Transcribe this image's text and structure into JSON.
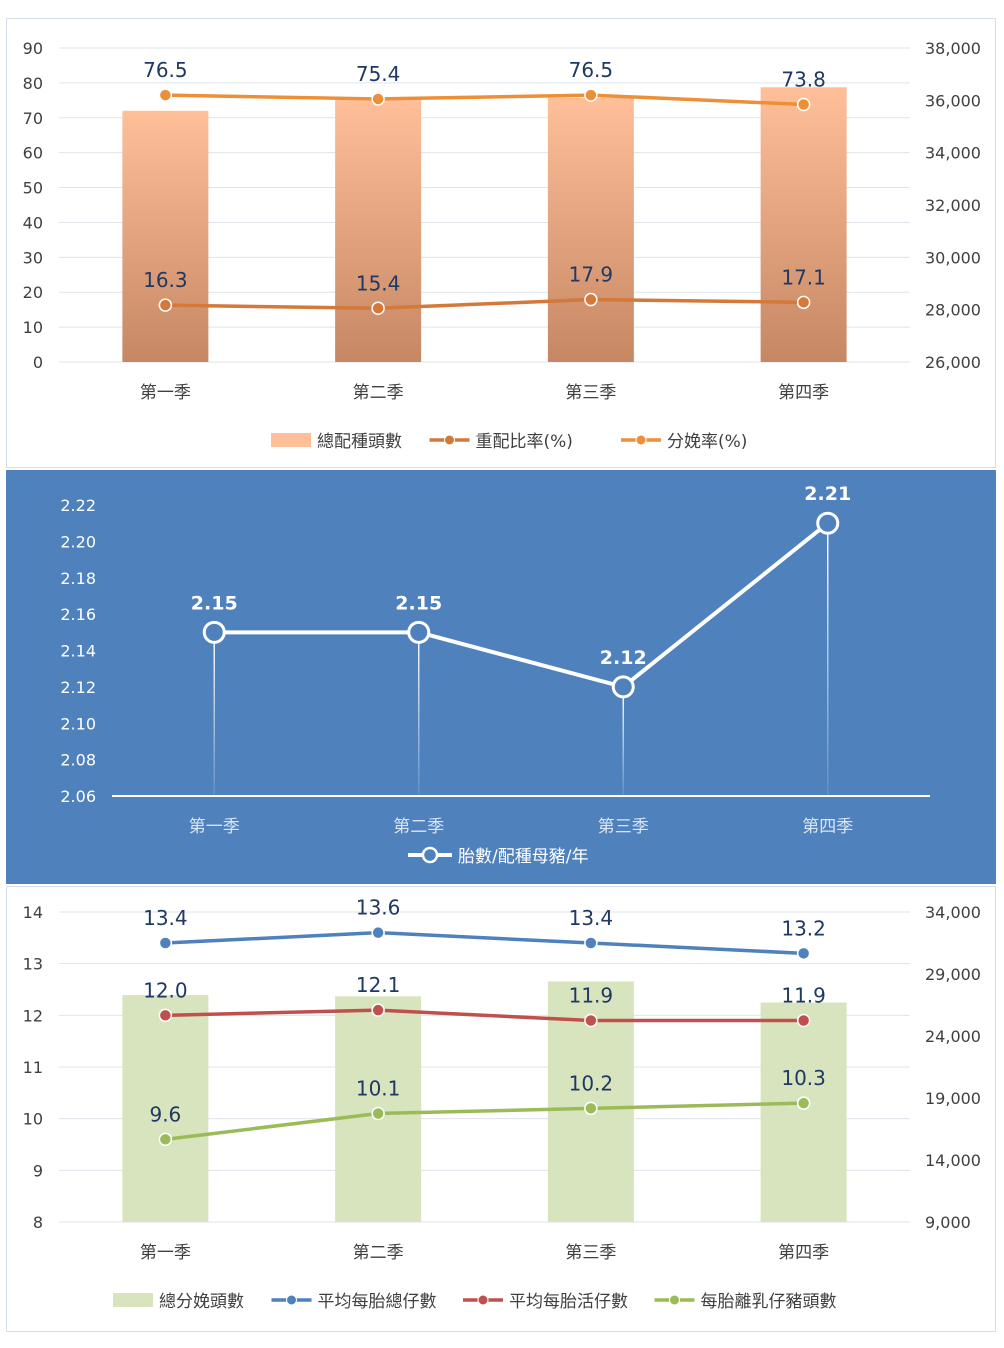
{
  "chart_data": [
    {
      "type": "bar+line",
      "categories": [
        "第一季",
        "第二季",
        "第三季",
        "第四季"
      ],
      "y_left": {
        "min": 0,
        "max": 90,
        "step": 10
      },
      "y_right": {
        "min": 26000,
        "max": 38000,
        "step": 2000
      },
      "series": [
        {
          "name": "總配種頭數",
          "kind": "bar",
          "axis": "right",
          "color": "#f4a97f",
          "values": [
            35600,
            36100,
            36100,
            36500
          ]
        },
        {
          "name": "重配比率(%)",
          "kind": "line",
          "axis": "left",
          "color": "#d4793a",
          "values": [
            16.3,
            15.4,
            17.9,
            17.1
          ],
          "labels": [
            "16.3",
            "15.4",
            "17.9",
            "17.1"
          ]
        },
        {
          "name": "分娩率(%)",
          "kind": "line",
          "axis": "left",
          "color": "#ed8f36",
          "values": [
            76.5,
            75.4,
            76.5,
            73.8
          ],
          "labels": [
            "76.5",
            "75.4",
            "76.5",
            "73.8"
          ]
        }
      ],
      "legend": "bottom"
    },
    {
      "type": "line",
      "categories": [
        "第一季",
        "第二季",
        "第三季",
        "第四季"
      ],
      "y_left": {
        "min": 2.06,
        "max": 2.22,
        "step": 0.02
      },
      "series": [
        {
          "name": "胎數/配種母豬/年",
          "kind": "line",
          "axis": "left",
          "color": "#ffffff",
          "values": [
            2.15,
            2.15,
            2.12,
            2.21
          ],
          "labels": [
            "2.15",
            "2.15",
            "2.12",
            "2.21"
          ]
        }
      ],
      "legend": "bottom"
    },
    {
      "type": "bar+line",
      "categories": [
        "第一季",
        "第二季",
        "第三季",
        "第四季"
      ],
      "y_left": {
        "min": 8,
        "max": 14,
        "step": 1
      },
      "y_right": {
        "min": 9000,
        "max": 34000,
        "step": 5000
      },
      "series": [
        {
          "name": "總分娩頭數",
          "kind": "bar",
          "axis": "right",
          "color": "#d7e4bd",
          "values": [
            27300,
            27200,
            28400,
            26700
          ]
        },
        {
          "name": "平均每胎總仔數",
          "kind": "line",
          "axis": "left",
          "color": "#4f81bd",
          "values": [
            13.4,
            13.6,
            13.4,
            13.2
          ],
          "labels": [
            "13.4",
            "13.6",
            "13.4",
            "13.2"
          ]
        },
        {
          "name": "平均每胎活仔數",
          "kind": "line",
          "axis": "left",
          "color": "#c0504d",
          "values": [
            12.0,
            12.1,
            11.9,
            11.9
          ],
          "labels": [
            "12.0",
            "12.1",
            "11.9",
            "11.9"
          ]
        },
        {
          "name": "每胎離乳仔豬頭數",
          "kind": "line",
          "axis": "left",
          "color": "#9bbb59",
          "values": [
            9.6,
            10.1,
            10.2,
            10.3
          ],
          "labels": [
            "9.6",
            "10.1",
            "10.2",
            "10.3"
          ]
        }
      ],
      "legend": "bottom"
    }
  ]
}
